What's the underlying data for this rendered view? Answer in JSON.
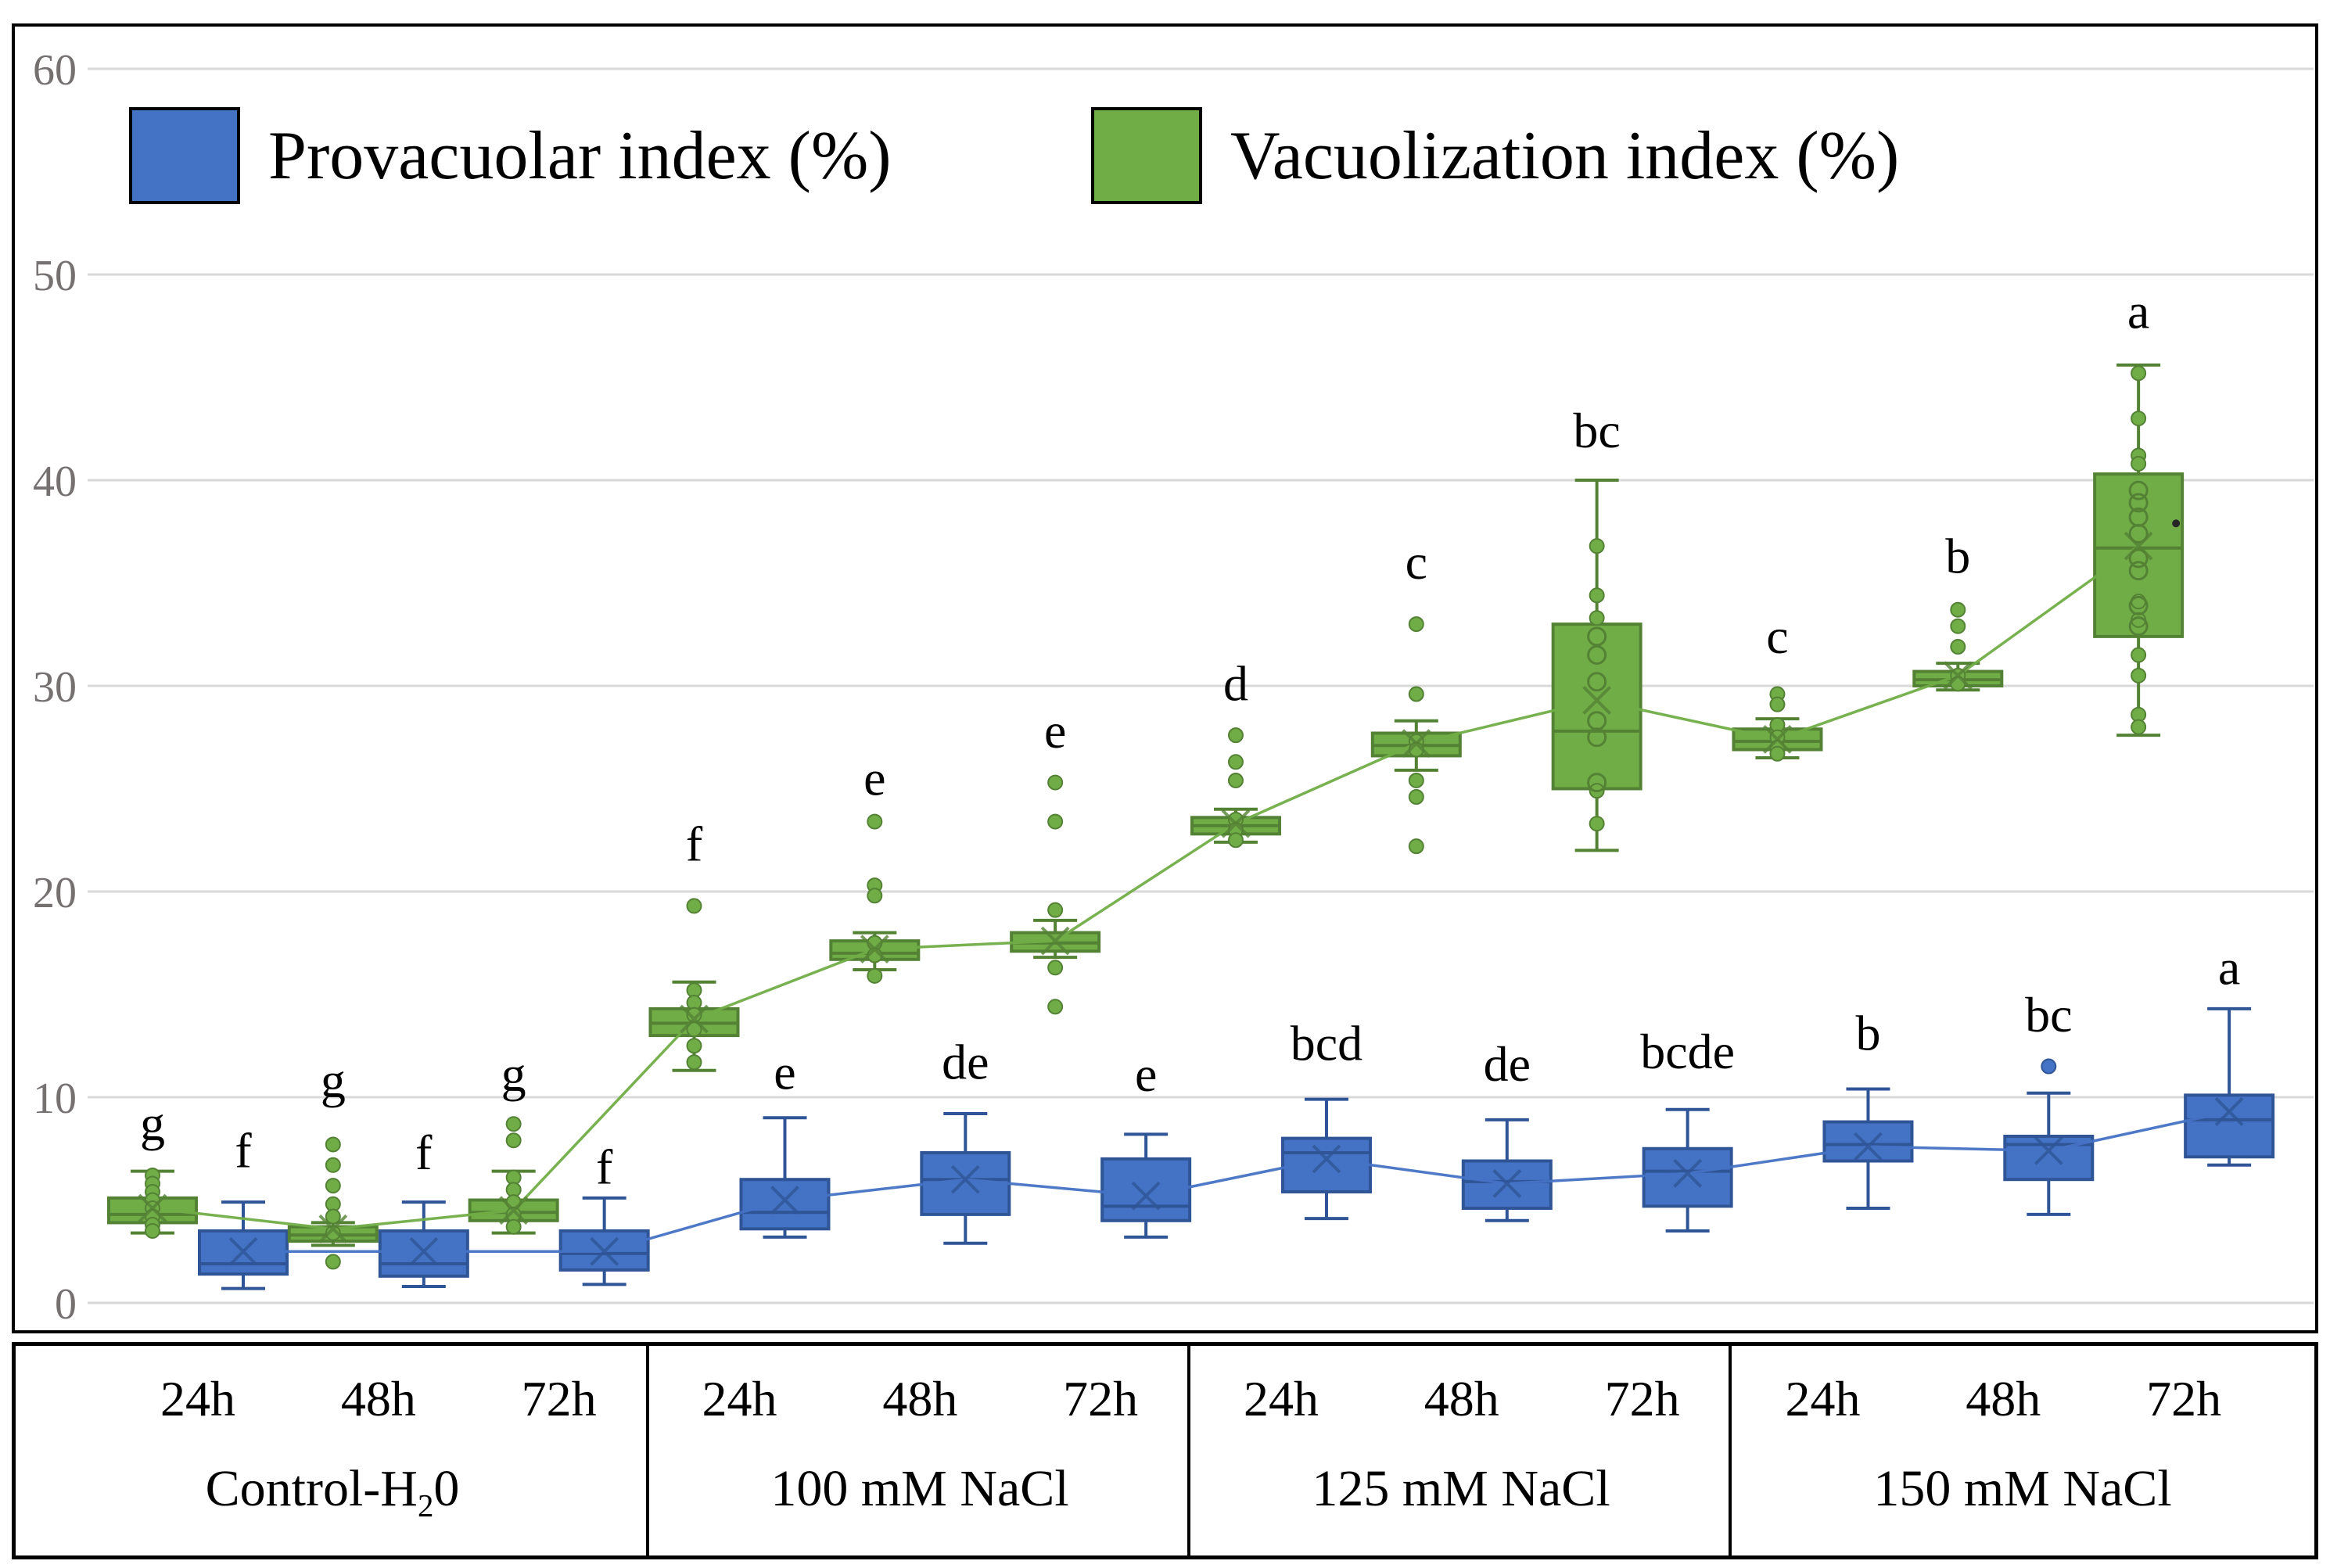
{
  "legend": {
    "items": [
      {
        "id": "provacuolar",
        "label": "Provacuolar index (%)",
        "color": "#4472C4"
      },
      {
        "id": "vacuolization",
        "label": "Vacuolization index (%)",
        "color": "#70AD47"
      }
    ]
  },
  "y_axis": {
    "min": 0,
    "max": 60,
    "ticks": [
      0,
      10,
      20,
      30,
      40,
      50,
      60
    ]
  },
  "x_axis": {
    "groups": [
      {
        "label": "Control-H20",
        "label_parts": [
          "Control-H",
          "2",
          "0"
        ],
        "times": [
          "24h",
          "48h",
          "72h"
        ]
      },
      {
        "label": "100 mM NaCl",
        "times": [
          "24h",
          "48h",
          "72h"
        ]
      },
      {
        "label": "125 mM NaCl",
        "times": [
          "24h",
          "48h",
          "72h"
        ]
      },
      {
        "label": "150 mM NaCl",
        "times": [
          "24h",
          "48h",
          "72h"
        ]
      }
    ]
  },
  "chart_data": {
    "type": "box",
    "title": "",
    "ylim": [
      0,
      60
    ],
    "yticks": [
      0,
      10,
      20,
      30,
      40,
      50,
      60
    ],
    "grid": true,
    "legend_position": "top-left-inside",
    "series": [
      {
        "id": "vacuolization",
        "name": "Vacuolization index (%)",
        "fill": "#70AD47",
        "stroke": "#548235",
        "side": "left"
      },
      {
        "id": "provacuolar",
        "name": "Provacuolar index (%)",
        "fill": "#4472C4",
        "stroke": "#2F5597",
        "side": "right"
      }
    ],
    "boxes": [
      {
        "group": "Control-H20",
        "time": "24h",
        "vacuolization": {
          "lo": 3.4,
          "q1": 3.9,
          "med": 4.3,
          "q3": 5.1,
          "hi": 6.4,
          "mean": 4.6,
          "letter": "g",
          "letter_v": 7.9,
          "dots": [
            6.2,
            5.8,
            5.4,
            5.0,
            4.6,
            4.2,
            3.8,
            3.5
          ],
          "rings": []
        },
        "provacuolar": {
          "lo": 0.7,
          "q1": 1.4,
          "med": 1.9,
          "q3": 3.5,
          "hi": 4.9,
          "mean": 2.5,
          "letter": "f",
          "letter_v": 6.6,
          "dots": [],
          "rings": []
        }
      },
      {
        "group": "Control-H20",
        "time": "48h",
        "vacuolization": {
          "lo": 2.8,
          "q1": 3.0,
          "med": 3.3,
          "q3": 3.7,
          "hi": 3.9,
          "mean": 3.6,
          "letter": "g",
          "letter_v": 10.0,
          "dots": [
            7.7,
            6.7,
            5.7,
            4.8,
            4.2,
            3.4,
            2.0
          ],
          "rings": []
        },
        "provacuolar": {
          "lo": 0.8,
          "q1": 1.3,
          "med": 1.9,
          "q3": 3.5,
          "hi": 4.9,
          "mean": 2.5,
          "letter": "f",
          "letter_v": 6.5,
          "dots": [],
          "rings": []
        }
      },
      {
        "group": "Control-H20",
        "time": "72h",
        "vacuolization": {
          "lo": 3.4,
          "q1": 4.0,
          "med": 4.4,
          "q3": 5.0,
          "hi": 6.4,
          "mean": 4.5,
          "letter": "g",
          "letter_v": 10.3,
          "dots": [
            8.7,
            7.9,
            6.1,
            5.5,
            4.9,
            4.3,
            3.7
          ],
          "rings": []
        },
        "provacuolar": {
          "lo": 0.9,
          "q1": 1.6,
          "med": 2.4,
          "q3": 3.5,
          "hi": 5.1,
          "mean": 2.5,
          "letter": "f",
          "letter_v": 5.8,
          "dots": [],
          "rings": []
        }
      },
      {
        "group": "100 mM NaCl",
        "time": "24h",
        "vacuolization": {
          "lo": 11.3,
          "q1": 13.0,
          "med": 13.6,
          "q3": 14.3,
          "hi": 15.6,
          "mean": 13.8,
          "letter": "f",
          "letter_v": 21.5,
          "dots": [
            19.3,
            15.2,
            14.6,
            14.0,
            13.3,
            12.5,
            11.7
          ],
          "rings": []
        },
        "provacuolar": {
          "lo": 3.2,
          "q1": 3.6,
          "med": 4.4,
          "q3": 6.0,
          "hi": 9.0,
          "mean": 5.0,
          "letter": "e",
          "letter_v": 10.4,
          "dots": [],
          "rings": []
        }
      },
      {
        "group": "100 mM NaCl",
        "time": "48h",
        "vacuolization": {
          "lo": 16.2,
          "q1": 16.7,
          "med": 17.0,
          "q3": 17.6,
          "hi": 18.0,
          "mean": 17.2,
          "letter": "e",
          "letter_v": 24.7,
          "dots": [
            23.4,
            20.3,
            19.8,
            17.5,
            16.9,
            15.9
          ],
          "rings": []
        },
        "provacuolar": {
          "lo": 2.9,
          "q1": 4.3,
          "med": 6.0,
          "q3": 7.3,
          "hi": 9.2,
          "mean": 6.0,
          "letter": "de",
          "letter_v": 10.9,
          "dots": [],
          "rings": []
        }
      },
      {
        "group": "100 mM NaCl",
        "time": "72h",
        "vacuolization": {
          "lo": 16.8,
          "q1": 17.1,
          "med": 17.5,
          "q3": 18.0,
          "hi": 18.6,
          "mean": 17.6,
          "letter": "e",
          "letter_v": 27.0,
          "dots": [
            25.3,
            23.4,
            19.1,
            16.3,
            14.4
          ],
          "rings": []
        },
        "provacuolar": {
          "lo": 3.2,
          "q1": 4.0,
          "med": 4.7,
          "q3": 7.0,
          "hi": 8.2,
          "mean": 5.2,
          "letter": "e",
          "letter_v": 10.3,
          "dots": [],
          "rings": []
        }
      },
      {
        "group": "125 mM NaCl",
        "time": "24h",
        "vacuolization": {
          "lo": 22.4,
          "q1": 22.8,
          "med": 23.2,
          "q3": 23.6,
          "hi": 24.0,
          "mean": 23.3,
          "letter": "d",
          "letter_v": 29.3,
          "dots": [
            27.6,
            26.3,
            25.4,
            23.5,
            23.0,
            22.5
          ],
          "rings": []
        },
        "provacuolar": {
          "lo": 4.1,
          "q1": 5.4,
          "med": 7.3,
          "q3": 8.0,
          "hi": 9.9,
          "mean": 7.0,
          "letter": "bcd",
          "letter_v": 11.8,
          "dots": [],
          "rings": []
        }
      },
      {
        "group": "125 mM NaCl",
        "time": "48h",
        "vacuolization": {
          "lo": 25.9,
          "q1": 26.6,
          "med": 27.1,
          "q3": 27.7,
          "hi": 28.3,
          "mean": 27.2,
          "letter": "c",
          "letter_v": 35.2,
          "dots": [
            33.0,
            29.6,
            27.3,
            26.9,
            25.4,
            24.6,
            22.2
          ],
          "rings": []
        },
        "provacuolar": {
          "lo": 4.0,
          "q1": 4.6,
          "med": 5.9,
          "q3": 6.9,
          "hi": 8.9,
          "mean": 5.8,
          "letter": "de",
          "letter_v": 10.8,
          "dots": [],
          "rings": []
        }
      },
      {
        "group": "125 mM NaCl",
        "time": "72h",
        "vacuolization": {
          "lo": 22.0,
          "q1": 25.0,
          "med": 27.8,
          "q3": 33.0,
          "hi": 40.0,
          "mean": 29.3,
          "letter": "bc",
          "letter_v": 41.6,
          "dots": [
            36.8,
            34.4,
            33.3,
            24.9,
            23.3
          ],
          "rings": [
            32.4,
            31.5,
            30.2,
            28.3,
            27.5,
            25.3
          ]
        },
        "provacuolar": {
          "lo": 3.5,
          "q1": 4.7,
          "med": 6.4,
          "q3": 7.5,
          "hi": 9.4,
          "mean": 6.3,
          "letter": "bcde",
          "letter_v": 11.4,
          "dots": [],
          "rings": []
        }
      },
      {
        "group": "150 mM NaCl",
        "time": "24h",
        "vacuolization": {
          "lo": 26.5,
          "q1": 26.9,
          "med": 27.3,
          "q3": 27.9,
          "hi": 28.4,
          "mean": 27.4,
          "letter": "c",
          "letter_v": 31.6,
          "dots": [
            29.6,
            29.1,
            28.1,
            27.5,
            27.0,
            26.7
          ],
          "rings": []
        },
        "provacuolar": {
          "lo": 4.6,
          "q1": 6.9,
          "med": 7.7,
          "q3": 8.8,
          "hi": 10.4,
          "mean": 7.6,
          "letter": "b",
          "letter_v": 12.3,
          "dots": [],
          "rings": []
        }
      },
      {
        "group": "150 mM NaCl",
        "time": "48h",
        "vacuolization": {
          "lo": 29.8,
          "q1": 30.0,
          "med": 30.3,
          "q3": 30.7,
          "hi": 31.1,
          "mean": 30.5,
          "letter": "b",
          "letter_v": 35.5,
          "dots": [
            33.7,
            32.9,
            31.9,
            30.5,
            30.1
          ],
          "rings": []
        },
        "provacuolar": {
          "lo": 4.3,
          "q1": 6.0,
          "med": 7.7,
          "q3": 8.1,
          "hi": 10.2,
          "mean": 7.4,
          "letter": "bc",
          "letter_v": 13.2,
          "dots": [
            11.5
          ],
          "rings": []
        }
      },
      {
        "group": "150 mM NaCl",
        "time": "72h",
        "vacuolization": {
          "lo": 27.6,
          "q1": 32.4,
          "med": 36.7,
          "q3": 40.3,
          "hi": 45.6,
          "mean": 36.8,
          "letter": "a",
          "letter_v": 47.4,
          "dots": [
            45.2,
            43.0,
            41.2,
            40.8,
            34.1,
            33.2,
            31.5,
            30.5,
            28.6,
            28.0
          ],
          "rings": [
            39.5,
            38.9,
            38.2,
            37.4,
            36.2,
            35.6,
            33.9,
            32.9
          ],
          "stray": {
            "v": 37.9,
            "dx": 48
          }
        },
        "provacuolar": {
          "lo": 6.7,
          "q1": 7.1,
          "med": 8.9,
          "q3": 10.1,
          "hi": 14.3,
          "mean": 9.3,
          "letter": "a",
          "letter_v": 15.5,
          "dots": [],
          "rings": []
        }
      }
    ],
    "colors": {
      "grid": "#D9D9D9",
      "tick_text": "#767171",
      "sig_letter": "#000000",
      "frame": "#000000"
    }
  }
}
